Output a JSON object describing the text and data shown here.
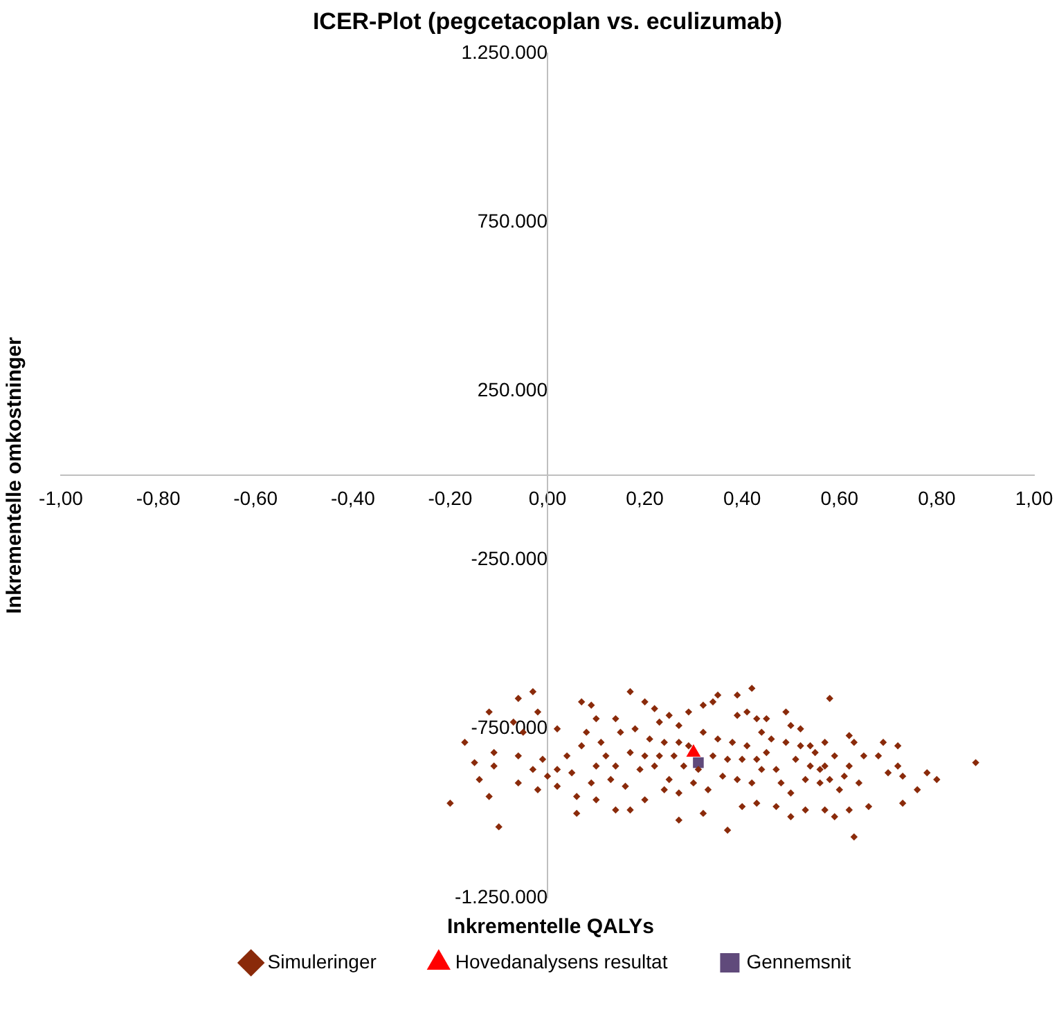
{
  "chart_data": {
    "type": "scatter",
    "title": "ICER-Plot (pegcetacoplan vs. eculizumab)",
    "xlabel": "Inkrementelle QALYs",
    "ylabel": "Inkrementelle omkostninger",
    "xlim": [
      -1,
      1
    ],
    "ylim": [
      -1250000,
      1250000
    ],
    "xticks": [
      {
        "value": -1,
        "label": "-1,00"
      },
      {
        "value": -0.8,
        "label": "-0,80"
      },
      {
        "value": -0.6,
        "label": "-0,60"
      },
      {
        "value": -0.4,
        "label": "-0,40"
      },
      {
        "value": -0.2,
        "label": "-0,20"
      },
      {
        "value": 0,
        "label": "0,00"
      },
      {
        "value": 0.2,
        "label": "0,20"
      },
      {
        "value": 0.4,
        "label": "0,40"
      },
      {
        "value": 0.6,
        "label": "0,60"
      },
      {
        "value": 0.8,
        "label": "0,80"
      },
      {
        "value": 1,
        "label": "1,00"
      }
    ],
    "yticks": [
      {
        "value": -1250000,
        "label": "-1.250.000"
      },
      {
        "value": -750000,
        "label": "-750.000"
      },
      {
        "value": -250000,
        "label": "-250.000"
      },
      {
        "value": 250000,
        "label": "250.000"
      },
      {
        "value": 750000,
        "label": "750.000"
      },
      {
        "value": 1250000,
        "label": "1.250.000"
      }
    ],
    "grid": false,
    "legend": "bottom",
    "series": [
      {
        "name": "Simuleringer",
        "color": "#8a2a0a",
        "marker": "diamond",
        "x": [
          -0.2,
          -0.1,
          -0.03,
          -0.06,
          -0.12,
          -0.02,
          -0.07,
          -0.05,
          -0.17,
          -0.15,
          -0.14,
          -0.12,
          -0.11,
          -0.11,
          -0.06,
          -0.06,
          -0.02,
          -0.01,
          0.02,
          0.02,
          0.07,
          0.09,
          0.1,
          0.14,
          0.17,
          0.2,
          0.22,
          0.23,
          0.25,
          0.27,
          0.29,
          0.32,
          0.34,
          0.35,
          0.39,
          0.42,
          0.39,
          0.41,
          0.43,
          0.45,
          0.49,
          0.5,
          0.52,
          0.54,
          0.57,
          0.58,
          0.62,
          0.63,
          0.65,
          0.69,
          0.72,
          0.68,
          0.7,
          0.72,
          0.73,
          0.76,
          0.78,
          0.8,
          0.88,
          0.63,
          0.37,
          0.27,
          0.32,
          0.17,
          0.14,
          0.06,
          0.06,
          0.1,
          0.2,
          0.24,
          0.4,
          0.43,
          0.47,
          0.5,
          0.53,
          0.57,
          0.59,
          0.62,
          0.66,
          0.73,
          0.6,
          0.56,
          0.64,
          0.04,
          0.07,
          0.1,
          0.11,
          0.13,
          0.15,
          0.17,
          0.19,
          0.21,
          0.23,
          0.25,
          0.27,
          0.28,
          0.3,
          0.32,
          0.34,
          0.36,
          0.38,
          0.4,
          0.42,
          0.44,
          0.45,
          0.47,
          0.49,
          0.51,
          0.53,
          0.55,
          0.57,
          0.59,
          0.61,
          0.05,
          0.09,
          0.12,
          0.16,
          0.18,
          0.22,
          0.26,
          0.29,
          0.33,
          0.37,
          0.41,
          0.44,
          0.48,
          0.52,
          0.56,
          0.62,
          0.08,
          0.14,
          0.2,
          0.24,
          0.27,
          0.31,
          0.35,
          0.39,
          0.43,
          0.46,
          0.5,
          0.54,
          0.58,
          0.02,
          0.0,
          -0.03
        ],
        "values": [
          -970000,
          -1040000,
          -640000,
          -660000,
          -700000,
          -700000,
          -730000,
          -760000,
          -790000,
          -850000,
          -900000,
          -950000,
          -860000,
          -820000,
          -830000,
          -910000,
          -930000,
          -840000,
          -920000,
          -750000,
          -670000,
          -680000,
          -720000,
          -720000,
          -640000,
          -670000,
          -690000,
          -730000,
          -710000,
          -740000,
          -700000,
          -680000,
          -670000,
          -650000,
          -650000,
          -630000,
          -710000,
          -700000,
          -720000,
          -720000,
          -700000,
          -740000,
          -750000,
          -800000,
          -790000,
          -660000,
          -770000,
          -790000,
          -830000,
          -790000,
          -800000,
          -830000,
          -880000,
          -860000,
          -890000,
          -930000,
          -880000,
          -900000,
          -850000,
          -1070000,
          -1050000,
          -1020000,
          -1000000,
          -990000,
          -990000,
          -1000000,
          -950000,
          -960000,
          -960000,
          -930000,
          -980000,
          -970000,
          -980000,
          -1010000,
          -990000,
          -990000,
          -1010000,
          -990000,
          -980000,
          -970000,
          -930000,
          -910000,
          -910000,
          -830000,
          -800000,
          -860000,
          -790000,
          -900000,
          -760000,
          -820000,
          -870000,
          -780000,
          -830000,
          -900000,
          -790000,
          -860000,
          -910000,
          -760000,
          -830000,
          -890000,
          -790000,
          -840000,
          -910000,
          -760000,
          -820000,
          -870000,
          -790000,
          -840000,
          -900000,
          -820000,
          -860000,
          -830000,
          -890000,
          -880000,
          -910000,
          -830000,
          -920000,
          -750000,
          -860000,
          -830000,
          -800000,
          -930000,
          -840000,
          -800000,
          -870000,
          -910000,
          -800000,
          -870000,
          -860000,
          -760000,
          -860000,
          -830000,
          -790000,
          -940000,
          -870000,
          -780000,
          -900000,
          -840000,
          -780000,
          -940000,
          -860000,
          -900000,
          -870000,
          -890000,
          -870000
        ]
      },
      {
        "name": "Hovedanalysens resultat",
        "color": "#ff0000",
        "marker": "triangle",
        "x": [
          0.3
        ],
        "values": [
          -820000
        ]
      },
      {
        "name": "Gennemsnit",
        "color": "#604a7b",
        "marker": "square",
        "x": [
          0.31
        ],
        "values": [
          -850000
        ]
      }
    ]
  }
}
